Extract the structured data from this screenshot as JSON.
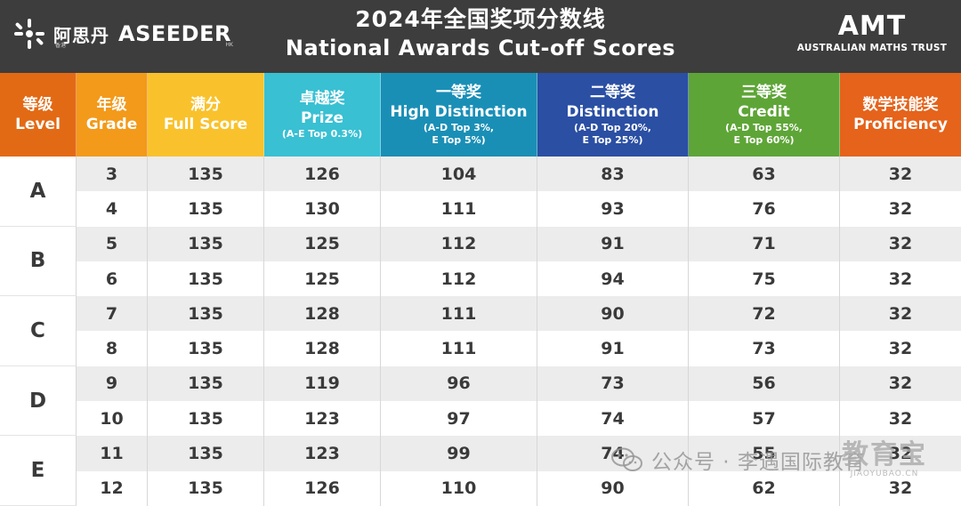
{
  "banner": {
    "logo_cn": "阿思丹",
    "logo_cn_sub": "香港",
    "logo_en": "ASEEDER",
    "logo_en_sub": "HK",
    "title_cn": "2024年全国奖项分数线",
    "title_en": "National Awards Cut-off Scores",
    "amt_mark": "AMT",
    "amt_sub": "AUSTRALIAN MATHS TRUST"
  },
  "columns": [
    {
      "cn": "等级",
      "en": "Level",
      "note": "",
      "color": "#e36a15"
    },
    {
      "cn": "年级",
      "en": "Grade",
      "note": "",
      "color": "#f39a1a"
    },
    {
      "cn": "满分",
      "en": "Full Score",
      "note": "",
      "color": "#f9c22c"
    },
    {
      "cn": "卓越奖",
      "en": "Prize",
      "note": "(A-E Top 0.3%)",
      "color": "#39c0d3"
    },
    {
      "cn": "一等奖",
      "en": "High Distinction",
      "note": "(A-D Top 3%, E Top 5%)",
      "color": "#1a8fb6"
    },
    {
      "cn": "二等奖",
      "en": "Distinction",
      "note": "(A-D Top 20%, E Top 25%)",
      "color": "#2b4fa3"
    },
    {
      "cn": "三等奖",
      "en": "Credit",
      "note": "(A-D Top 55%, E Top 60%)",
      "color": "#5ea537"
    },
    {
      "cn": "数学技能奖",
      "en": "Proficiency",
      "note": "",
      "color": "#e5631b"
    }
  ],
  "notes_lines": {
    "prize": [
      "(A-E Top 0.3%)"
    ],
    "hd": [
      "(A-D Top 3%,",
      "E Top 5%)"
    ],
    "d": [
      "(A-D Top 20%,",
      "E Top 25%)"
    ],
    "c": [
      "(A-D Top 55%,",
      "E Top 60%)"
    ]
  },
  "levels": [
    "A",
    "B",
    "C",
    "D",
    "E"
  ],
  "rows": [
    {
      "grade": "3",
      "full": "135",
      "prize": "126",
      "hd": "104",
      "d": "83",
      "c": "63",
      "p": "32"
    },
    {
      "grade": "4",
      "full": "135",
      "prize": "130",
      "hd": "111",
      "d": "93",
      "c": "76",
      "p": "32"
    },
    {
      "grade": "5",
      "full": "135",
      "prize": "125",
      "hd": "112",
      "d": "91",
      "c": "71",
      "p": "32"
    },
    {
      "grade": "6",
      "full": "135",
      "prize": "125",
      "hd": "112",
      "d": "94",
      "c": "75",
      "p": "32"
    },
    {
      "grade": "7",
      "full": "135",
      "prize": "128",
      "hd": "111",
      "d": "90",
      "c": "72",
      "p": "32"
    },
    {
      "grade": "8",
      "full": "135",
      "prize": "128",
      "hd": "111",
      "d": "91",
      "c": "73",
      "p": "32"
    },
    {
      "grade": "9",
      "full": "135",
      "prize": "119",
      "hd": "96",
      "d": "73",
      "c": "56",
      "p": "32"
    },
    {
      "grade": "10",
      "full": "135",
      "prize": "123",
      "hd": "97",
      "d": "74",
      "c": "57",
      "p": "32"
    },
    {
      "grade": "11",
      "full": "135",
      "prize": "123",
      "hd": "99",
      "d": "74",
      "c": "55",
      "p": "32"
    },
    {
      "grade": "12",
      "full": "135",
      "prize": "126",
      "hd": "110",
      "d": "90",
      "c": "62",
      "p": "32"
    }
  ],
  "watermark": {
    "icon": "wechat-icon",
    "text": "公众号 · 李遇国际教育",
    "site_cn": "教育宝",
    "site_en": "JIAOYUBAO.CN"
  }
}
